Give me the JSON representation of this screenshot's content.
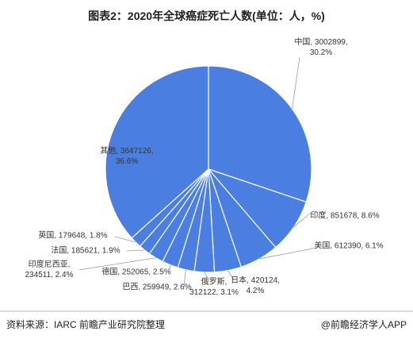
{
  "chart_data": {
    "type": "pie",
    "title": "图表2：2020年全球癌症死亡人数(单位：人，%)",
    "source": "资料来源：IARC 前瞻产业研究院整理",
    "credit": "@前瞻经济学人APP",
    "color": "#4a7ee0",
    "values": [
      3002899,
      851678,
      612390,
      420124,
      312122,
      259949,
      252065,
      234511,
      185621,
      179648,
      3647126
    ],
    "value_labels": [
      "中国, 3002899, 30.2%",
      "印度, 851678, 8.6%",
      "美国, 612390, 6.1%",
      "日本, 420124, 4.2%",
      "俄罗斯, 312122, 3.1%",
      "巴西, 259949, 2.6%",
      "德国, 252065, 2.5%",
      "印度尼西亚, 234511, 2.4%",
      "法国, 185621, 1.9%",
      "英国, 179648, 1.8%",
      "其他, 3647126, 36.6%"
    ]
  }
}
